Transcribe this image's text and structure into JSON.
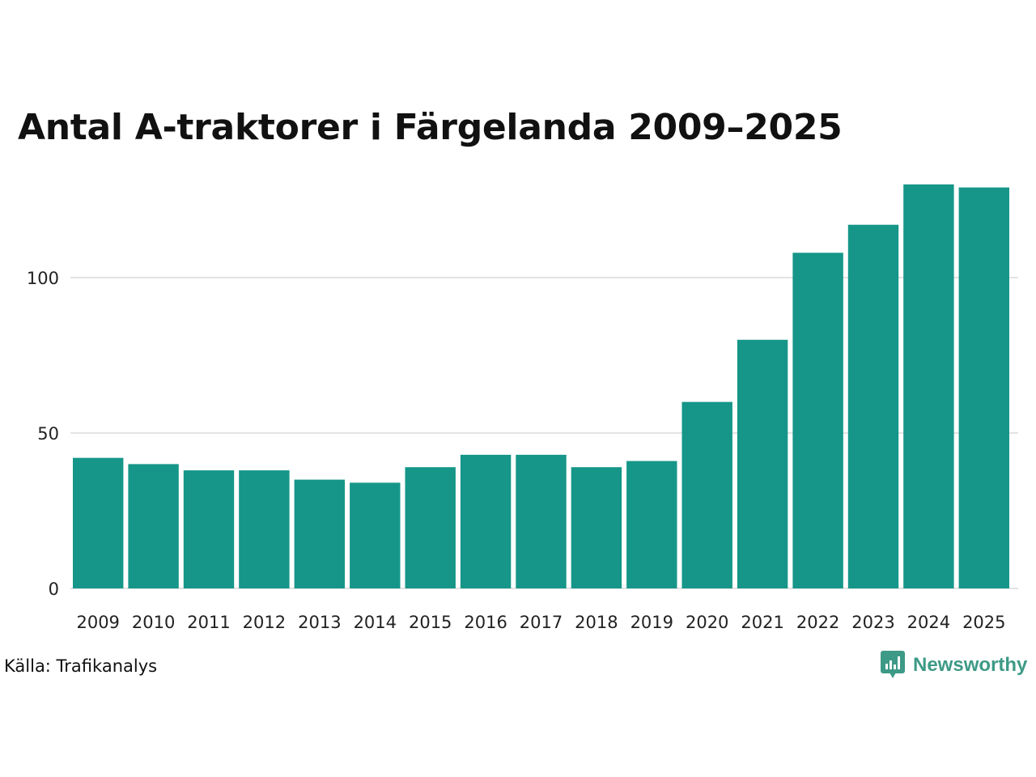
{
  "header": {
    "title": "Antal A-traktorer i Färgelanda 2009–2025"
  },
  "footer": {
    "source": "Källa: Trafikanalys",
    "brand_name": "Newsworthy"
  },
  "colors": {
    "bar": "#159688",
    "grid": "#e3e3e3",
    "brand": "#3d9a86"
  },
  "chart_data": {
    "type": "bar",
    "title": "Antal A-traktorer i Färgelanda 2009–2025",
    "xlabel": "",
    "ylabel": "",
    "categories": [
      "2009",
      "2010",
      "2011",
      "2012",
      "2013",
      "2014",
      "2015",
      "2016",
      "2017",
      "2018",
      "2019",
      "2020",
      "2021",
      "2022",
      "2023",
      "2024",
      "2025"
    ],
    "values": [
      42,
      40,
      38,
      38,
      35,
      34,
      39,
      43,
      43,
      39,
      41,
      60,
      80,
      108,
      117,
      130,
      129
    ],
    "ylim": [
      0,
      130
    ],
    "yticks": [
      0,
      50,
      100
    ],
    "grid": true,
    "legend": "none"
  }
}
